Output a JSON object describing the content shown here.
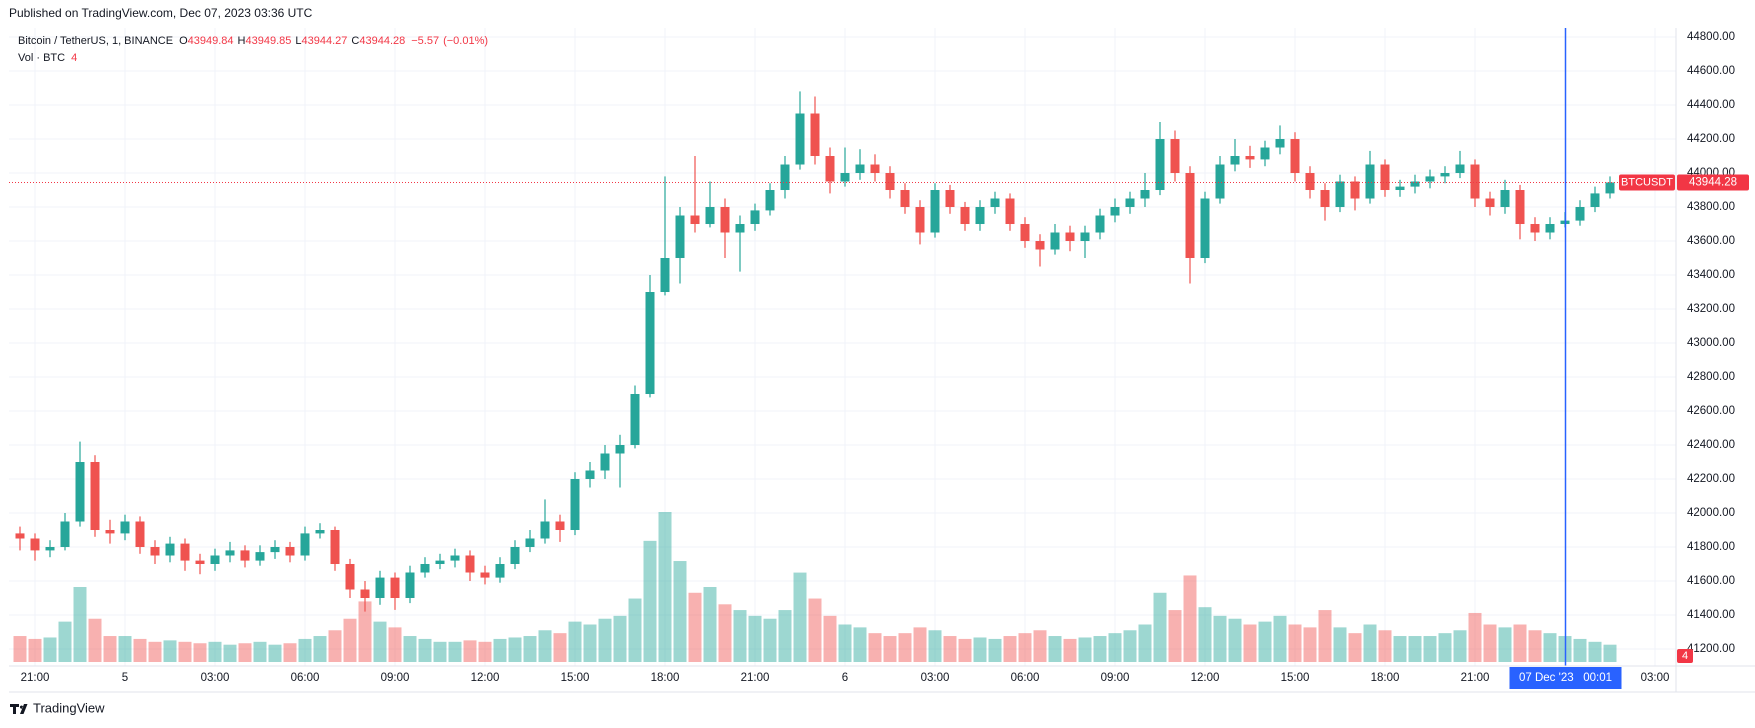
{
  "header": {
    "published": "Published on TradingView.com, Dec 07, 2023 03:36 UTC"
  },
  "chart_data": {
    "type": "candlestick",
    "legend": {
      "symbol": "Bitcoin / TetherUS, 1, BINANCE",
      "open_label": "O",
      "open": 43949.84,
      "high_label": "H",
      "high": 43949.85,
      "low_label": "L",
      "low": 43944.27,
      "close_label": "C",
      "close": 43944.28,
      "change": {
        "value": -5.57,
        "label": "−5.57"
      },
      "change_pct": {
        "value": -0.01,
        "label": "(−0.01%)"
      }
    },
    "volume_legend": {
      "label": "Vol · BTC",
      "value": 4
    },
    "x": [
      "2023-12-04 20:30",
      "2023-12-04 21:00",
      "2023-12-04 21:30",
      "2023-12-04 22:00",
      "2023-12-04 22:30",
      "2023-12-04 23:00",
      "2023-12-04 23:30",
      "2023-12-05 00:00",
      "2023-12-05 00:30",
      "2023-12-05 01:00",
      "2023-12-05 01:30",
      "2023-12-05 02:00",
      "2023-12-05 02:30",
      "2023-12-05 03:00",
      "2023-12-05 03:30",
      "2023-12-05 04:00",
      "2023-12-05 04:30",
      "2023-12-05 05:00",
      "2023-12-05 05:30",
      "2023-12-05 06:00",
      "2023-12-05 06:30",
      "2023-12-05 07:00",
      "2023-12-05 07:30",
      "2023-12-05 08:00",
      "2023-12-05 08:30",
      "2023-12-05 09:00",
      "2023-12-05 09:30",
      "2023-12-05 10:00",
      "2023-12-05 10:30",
      "2023-12-05 11:00",
      "2023-12-05 11:30",
      "2023-12-05 12:00",
      "2023-12-05 12:30",
      "2023-12-05 13:00",
      "2023-12-05 13:30",
      "2023-12-05 14:00",
      "2023-12-05 14:30",
      "2023-12-05 15:00",
      "2023-12-05 15:30",
      "2023-12-05 16:00",
      "2023-12-05 16:30",
      "2023-12-05 17:00",
      "2023-12-05 17:30",
      "2023-12-05 18:00",
      "2023-12-05 18:30",
      "2023-12-05 19:00",
      "2023-12-05 19:30",
      "2023-12-05 20:00",
      "2023-12-05 20:30",
      "2023-12-05 21:00",
      "2023-12-05 21:30",
      "2023-12-05 22:00",
      "2023-12-05 22:30",
      "2023-12-05 23:00",
      "2023-12-05 23:30",
      "2023-12-06 00:00",
      "2023-12-06 00:30",
      "2023-12-06 01:00",
      "2023-12-06 01:30",
      "2023-12-06 02:00",
      "2023-12-06 02:30",
      "2023-12-06 03:00",
      "2023-12-06 03:30",
      "2023-12-06 04:00",
      "2023-12-06 04:30",
      "2023-12-06 05:00",
      "2023-12-06 05:30",
      "2023-12-06 06:00",
      "2023-12-06 06:30",
      "2023-12-06 07:00",
      "2023-12-06 07:30",
      "2023-12-06 08:00",
      "2023-12-06 08:30",
      "2023-12-06 09:00",
      "2023-12-06 09:30",
      "2023-12-06 10:00",
      "2023-12-06 10:30",
      "2023-12-06 11:00",
      "2023-12-06 11:30",
      "2023-12-06 12:00",
      "2023-12-06 12:30",
      "2023-12-06 13:00",
      "2023-12-06 13:30",
      "2023-12-06 14:00",
      "2023-12-06 14:30",
      "2023-12-06 15:00",
      "2023-12-06 15:30",
      "2023-12-06 16:00",
      "2023-12-06 16:30",
      "2023-12-06 17:00",
      "2023-12-06 17:30",
      "2023-12-06 18:00",
      "2023-12-06 18:30",
      "2023-12-06 19:00",
      "2023-12-06 19:30",
      "2023-12-06 20:00",
      "2023-12-06 20:30",
      "2023-12-06 21:00",
      "2023-12-06 21:30",
      "2023-12-06 22:00",
      "2023-12-06 22:30",
      "2023-12-06 23:00",
      "2023-12-06 23:30",
      "2023-12-07 00:00",
      "2023-12-07 00:30",
      "2023-12-07 01:00",
      "2023-12-07 01:30"
    ],
    "open": [
      41880,
      41850,
      41780,
      41800,
      41950,
      42300,
      41900,
      41880,
      41950,
      41800,
      41750,
      41820,
      41720,
      41700,
      41750,
      41780,
      41720,
      41770,
      41800,
      41750,
      41880,
      41900,
      41700,
      41550,
      41500,
      41620,
      41500,
      41650,
      41700,
      41720,
      41750,
      41650,
      41620,
      41700,
      41800,
      41850,
      41950,
      41900,
      42200,
      42250,
      42350,
      42400,
      42700,
      43300,
      43500,
      43750,
      43700,
      43800,
      43650,
      43700,
      43780,
      43900,
      44050,
      44350,
      44100,
      43950,
      44000,
      44050,
      44000,
      43900,
      43800,
      43650,
      43900,
      43800,
      43700,
      43800,
      43850,
      43700,
      43600,
      43550,
      43650,
      43600,
      43650,
      43750,
      43800,
      43850,
      43900,
      44200,
      44000,
      43500,
      43850,
      44050,
      44100,
      44080,
      44150,
      44200,
      44000,
      43900,
      43800,
      43950,
      43850,
      44050,
      43900,
      43920,
      43950,
      43980,
      44000,
      44050,
      43850,
      43800,
      43900,
      43700,
      43650,
      43700,
      43720,
      43800,
      43880
    ],
    "high": [
      41920,
      41880,
      41840,
      42000,
      42420,
      42340,
      41960,
      41990,
      41980,
      41840,
      41860,
      41850,
      41760,
      41790,
      41830,
      41810,
      41810,
      41840,
      41830,
      41920,
      41940,
      41920,
      41730,
      41600,
      41660,
      41650,
      41690,
      41740,
      41760,
      41790,
      41780,
      41690,
      41740,
      41840,
      41900,
      42080,
      41990,
      42240,
      42300,
      42400,
      42460,
      42750,
      43400,
      43980,
      43800,
      44100,
      43950,
      43850,
      43750,
      43820,
      43940,
      44100,
      44480,
      44450,
      44150,
      44150,
      44140,
      44110,
      44040,
      43940,
      43840,
      43940,
      43930,
      43830,
      43840,
      43890,
      43880,
      43740,
      43640,
      43700,
      43690,
      43690,
      43790,
      43850,
      43890,
      44000,
      44300,
      44250,
      44040,
      43890,
      44100,
      44200,
      44160,
      44190,
      44280,
      44240,
      44040,
      43940,
      43990,
      43980,
      44130,
      44080,
      43960,
      43990,
      44020,
      44040,
      44130,
      44080,
      43890,
      43960,
      43930,
      43740,
      43740,
      43770,
      43840,
      43920,
      43980
    ],
    "low": [
      41780,
      41720,
      41740,
      41780,
      41920,
      41860,
      41820,
      41840,
      41760,
      41700,
      41710,
      41660,
      41640,
      41660,
      41710,
      41680,
      41690,
      41730,
      41710,
      41720,
      41850,
      41660,
      41500,
      41420,
      41460,
      41430,
      41470,
      41620,
      41670,
      41680,
      41600,
      41580,
      41590,
      41670,
      41770,
      41820,
      41830,
      41870,
      42150,
      42200,
      42150,
      42380,
      42680,
      43280,
      43350,
      43650,
      43680,
      43500,
      43420,
      43660,
      43750,
      43850,
      44020,
      44050,
      43880,
      43920,
      43960,
      43950,
      43850,
      43760,
      43580,
      43620,
      43760,
      43660,
      43660,
      43760,
      43660,
      43560,
      43450,
      43520,
      43540,
      43500,
      43610,
      43710,
      43760,
      43800,
      43870,
      43950,
      43350,
      43470,
      43820,
      44010,
      44030,
      44040,
      44110,
      43950,
      43850,
      43720,
      43770,
      43780,
      43820,
      43860,
      43860,
      43880,
      43910,
      43940,
      43970,
      43800,
      43750,
      43760,
      43610,
      43600,
      43610,
      43680,
      43690,
      43770,
      43850
    ],
    "close": [
      41850,
      41780,
      41800,
      41950,
      42300,
      41900,
      41880,
      41950,
      41800,
      41750,
      41820,
      41720,
      41700,
      41750,
      41780,
      41720,
      41770,
      41800,
      41750,
      41880,
      41900,
      41700,
      41550,
      41500,
      41620,
      41500,
      41650,
      41700,
      41720,
      41750,
      41650,
      41620,
      41700,
      41800,
      41850,
      41950,
      41900,
      42200,
      42250,
      42350,
      42400,
      42700,
      43300,
      43500,
      43750,
      43700,
      43800,
      43650,
      43700,
      43780,
      43900,
      44050,
      44350,
      44100,
      43950,
      44000,
      44050,
      44000,
      43900,
      43800,
      43650,
      43900,
      43800,
      43700,
      43800,
      43850,
      43700,
      43600,
      43550,
      43650,
      43600,
      43650,
      43750,
      43800,
      43850,
      43900,
      44200,
      44000,
      43500,
      43850,
      44050,
      44100,
      44080,
      44150,
      44200,
      44000,
      43900,
      43800,
      43950,
      43850,
      44050,
      43900,
      43920,
      43950,
      43980,
      44000,
      44050,
      43850,
      43800,
      43900,
      43700,
      43650,
      43700,
      43720,
      43800,
      43880,
      43944.28
    ],
    "volume": [
      900,
      800,
      850,
      1400,
      2600,
      1500,
      900,
      900,
      800,
      700,
      750,
      700,
      650,
      700,
      600,
      650,
      700,
      600,
      650,
      800,
      900,
      1100,
      1500,
      2100,
      1400,
      1200,
      900,
      800,
      700,
      700,
      750,
      700,
      800,
      850,
      900,
      1100,
      1000,
      1400,
      1300,
      1500,
      1600,
      2200,
      4200,
      5200,
      3500,
      2400,
      2600,
      2000,
      1800,
      1600,
      1500,
      1800,
      3100,
      2200,
      1600,
      1300,
      1200,
      1000,
      900,
      1000,
      1200,
      1100,
      900,
      800,
      850,
      800,
      900,
      1000,
      1100,
      900,
      800,
      850,
      900,
      1000,
      1100,
      1300,
      2400,
      1800,
      3000,
      1900,
      1600,
      1500,
      1300,
      1400,
      1600,
      1300,
      1200,
      1800,
      1200,
      1000,
      1300,
      1100,
      900,
      900,
      900,
      1000,
      1100,
      1700,
      1300,
      1200,
      1300,
      1100,
      1000,
      900,
      800,
      700,
      600
    ],
    "up_color": "#26a69a",
    "down_color": "#ef5350",
    "xlim": [
      "2023-12-04 20:08",
      "2023-12-07 03:42"
    ],
    "xticks": [
      {
        "value": "2023-12-04 21:00",
        "label": "21:00"
      },
      {
        "value": "2023-12-05 00:00",
        "label": "5"
      },
      {
        "value": "2023-12-05 03:00",
        "label": "03:00"
      },
      {
        "value": "2023-12-05 06:00",
        "label": "06:00"
      },
      {
        "value": "2023-12-05 09:00",
        "label": "09:00"
      },
      {
        "value": "2023-12-05 12:00",
        "label": "12:00"
      },
      {
        "value": "2023-12-05 15:00",
        "label": "15:00"
      },
      {
        "value": "2023-12-05 18:00",
        "label": "18:00"
      },
      {
        "value": "2023-12-05 21:00",
        "label": "21:00"
      },
      {
        "value": "2023-12-06 00:00",
        "label": "6"
      },
      {
        "value": "2023-12-06 03:00",
        "label": "03:00"
      },
      {
        "value": "2023-12-06 06:00",
        "label": "06:00"
      },
      {
        "value": "2023-12-06 09:00",
        "label": "09:00"
      },
      {
        "value": "2023-12-06 12:00",
        "label": "12:00"
      },
      {
        "value": "2023-12-06 15:00",
        "label": "15:00"
      },
      {
        "value": "2023-12-06 18:00",
        "label": "18:00"
      },
      {
        "value": "2023-12-06 21:00",
        "label": "21:00"
      },
      {
        "value": "2023-12-07 03:00",
        "label": "03:00"
      }
    ],
    "ylim": [
      41100,
      44853
    ],
    "yticks": [
      {
        "value": 41200,
        "label": "41200.00"
      },
      {
        "value": 41400,
        "label": "41400.00"
      },
      {
        "value": 41600,
        "label": "41600.00"
      },
      {
        "value": 41800,
        "label": "41800.00"
      },
      {
        "value": 42000,
        "label": "42000.00"
      },
      {
        "value": 42200,
        "label": "42200.00"
      },
      {
        "value": 42400,
        "label": "42400.00"
      },
      {
        "value": 42600,
        "label": "42600.00"
      },
      {
        "value": 42800,
        "label": "42800.00"
      },
      {
        "value": 43000,
        "label": "43000.00"
      },
      {
        "value": 43200,
        "label": "43200.00"
      },
      {
        "value": 43400,
        "label": "43400.00"
      },
      {
        "value": 43600,
        "label": "43600.00"
      },
      {
        "value": 43800,
        "label": "43800.00"
      },
      {
        "value": 44000,
        "label": "44000.00"
      },
      {
        "value": 44200,
        "label": "44200.00"
      },
      {
        "value": 44400,
        "label": "44400.00"
      },
      {
        "value": 44600,
        "label": "44600.00"
      },
      {
        "value": 44800,
        "label": "44800.00"
      }
    ],
    "grid": true,
    "last_price": {
      "symbol": "BTCUSDT",
      "value": 43944.28
    },
    "crosshair": {
      "x": "2023-12-07 00:01",
      "label": "07 Dec '23   00:01"
    }
  },
  "footer": {
    "brand": "TradingView"
  }
}
